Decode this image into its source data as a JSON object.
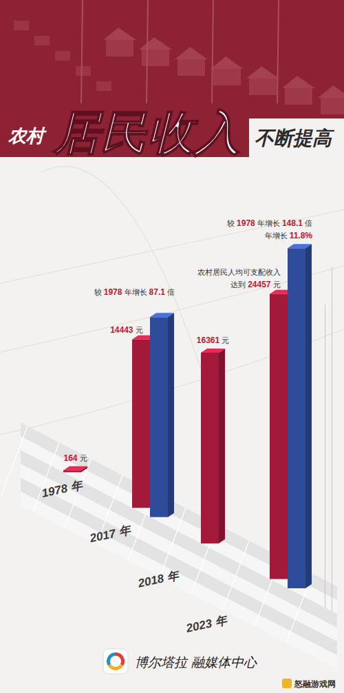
{
  "chart_data": {
    "type": "bar",
    "title": "农村居民收入不断提高",
    "categories": [
      "1978 年",
      "2017 年",
      "2018 年",
      "2023 年"
    ],
    "series": [
      {
        "color": "#a3193a",
        "values": [
          164,
          14443,
          16361,
          24457
        ],
        "value_labels": [
          "164 元",
          "14443 元",
          "16361 元",
          "达到 24457 元"
        ]
      },
      {
        "color": "#2e4c9a",
        "axis": "y2",
        "values": [
          null,
          87.1,
          null,
          148.1
        ],
        "value_labels": [
          null,
          "较 1978 年增长 87.1 倍",
          null,
          "较 1978 年增长 148.1 倍"
        ]
      }
    ],
    "ylim": [
      0,
      26000
    ],
    "yticks": [],
    "y2lim": [
      0,
      150
    ],
    "y2ticks": [],
    "tick_labels": false,
    "grid": false,
    "data_labels": true,
    "annotations": [
      {
        "text": "农村居民人均可支配收入",
        "series": 0,
        "index": 3
      },
      {
        "text": "年增长 11.8%",
        "series": 1,
        "index": 3
      }
    ],
    "source": "博尔塔拉 融媒体中心",
    "watermark": "怒融游戏网"
  }
}
